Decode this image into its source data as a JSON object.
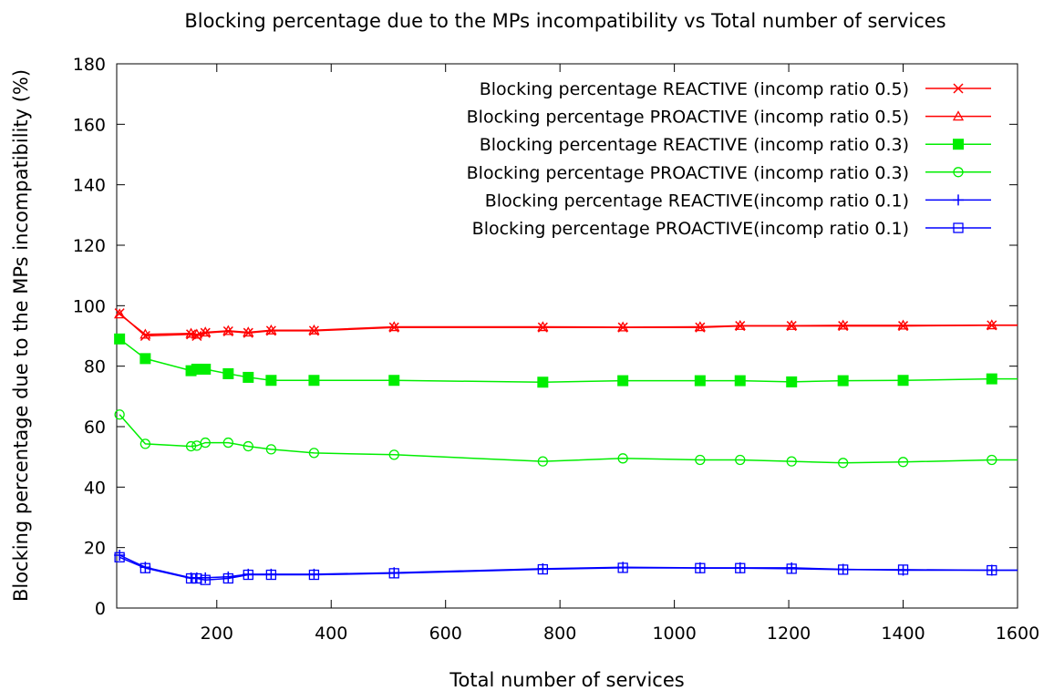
{
  "chart_data": {
    "type": "line",
    "title": "Blocking percentage due to the MPs incompatibility vs Total number of services",
    "xlabel": "Total number of services",
    "ylabel": "Blocking percentage due to the MPs incompatibility (%)",
    "xlim": [
      25,
      1600
    ],
    "ylim": [
      0,
      180
    ],
    "xticks": [
      200,
      400,
      600,
      800,
      1000,
      1200,
      1400,
      1600
    ],
    "xtick_labels": [
      "200",
      "400",
      "600",
      "800",
      "1000",
      "1200",
      "1400",
      "1600"
    ],
    "yticks": [
      0,
      20,
      40,
      60,
      80,
      100,
      120,
      140,
      160,
      180
    ],
    "ytick_labels": [
      "0",
      "20",
      "40",
      "60",
      "80",
      "100",
      "120",
      "140",
      "160",
      "180"
    ],
    "grid": false,
    "legend_position": "top-right",
    "x": [
      30,
      75,
      155,
      165,
      180,
      220,
      255,
      295,
      370,
      510,
      770,
      910,
      1045,
      1115,
      1205,
      1295,
      1400,
      1555
    ],
    "series": [
      {
        "name": "Blocking percentage REACTIVE (incomp ratio 0.5)",
        "color": "#ff0000",
        "marker": "x",
        "values": [
          97.5,
          90.0,
          90.5,
          90.0,
          91.0,
          91.5,
          91.0,
          91.7,
          91.7,
          92.8,
          92.8,
          92.8,
          92.8,
          93.3,
          93.3,
          93.3,
          93.3,
          93.5
        ]
      },
      {
        "name": "Blocking percentage PROACTIVE (incomp ratio 0.5)",
        "color": "#ff0000",
        "marker": "triangle",
        "values": [
          97.2,
          90.5,
          90.8,
          90.5,
          91.2,
          91.7,
          91.2,
          91.9,
          91.9,
          93.0,
          93.0,
          92.9,
          93.0,
          93.4,
          93.4,
          93.5,
          93.5,
          93.6
        ]
      },
      {
        "name": "Blocking percentage REACTIVE (incomp ratio 0.3)",
        "color": "#00ee00",
        "marker": "filled-square",
        "values": [
          89.0,
          82.5,
          78.5,
          79.0,
          79.0,
          77.5,
          76.3,
          75.3,
          75.3,
          75.3,
          74.7,
          75.2,
          75.2,
          75.2,
          74.8,
          75.2,
          75.3,
          75.8
        ]
      },
      {
        "name": "Blocking percentage PROACTIVE (incomp ratio 0.3)",
        "color": "#00ee00",
        "marker": "circle",
        "values": [
          64.0,
          54.3,
          53.5,
          53.7,
          54.7,
          54.7,
          53.5,
          52.5,
          51.3,
          50.7,
          48.5,
          49.5,
          49.0,
          49.0,
          48.5,
          48.0,
          48.3,
          49.0
        ]
      },
      {
        "name": "Blocking percentage REACTIVE(incomp ratio 0.1)",
        "color": "#0000ff",
        "marker": "plus",
        "values": [
          17.5,
          13.5,
          10.0,
          10.0,
          10.0,
          10.3,
          11.2,
          11.2,
          11.2,
          11.7,
          13.0,
          13.5,
          13.3,
          13.3,
          13.3,
          12.8,
          12.5,
          12.5
        ]
      },
      {
        "name": "Blocking percentage PROACTIVE(incomp ratio 0.1)",
        "color": "#0000ff",
        "marker": "open-square",
        "values": [
          16.8,
          13.2,
          9.8,
          9.8,
          9.3,
          9.8,
          11.0,
          11.0,
          11.0,
          11.5,
          12.8,
          13.3,
          13.2,
          13.2,
          13.0,
          12.7,
          12.7,
          12.5
        ]
      }
    ]
  }
}
